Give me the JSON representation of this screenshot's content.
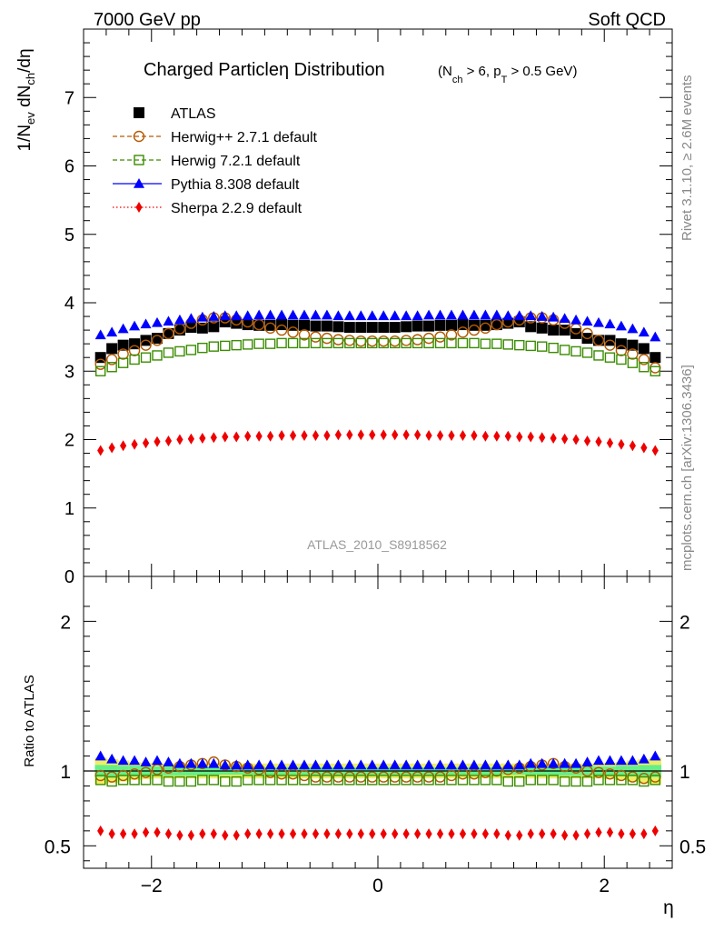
{
  "header": {
    "left": "7000 GeV pp",
    "right": "Soft QCD"
  },
  "side_labels": {
    "rivet": "Rivet 3.1.10, ≥ 2.6M events",
    "source": "mcplots.cern.ch [arXiv:1306.3436]"
  },
  "chart_data": [
    {
      "type": "scatter",
      "panel": "main",
      "title_main": "Charged Particleη Distribution",
      "title_sub": "(N_ch > 6, p_T > 0.5 GeV)",
      "watermark": "ATLAS_2010_S8918562",
      "ylabel": "1/N_ev dN_ch/dη",
      "xlabel": "η",
      "xlim": [
        -2.6,
        2.6
      ],
      "ylim": [
        0,
        8
      ],
      "yticks": [
        "0",
        "1",
        "2",
        "3",
        "4",
        "5",
        "6",
        "7"
      ],
      "xticks": [
        "−2",
        "0",
        "2"
      ],
      "legend_position": "top-left",
      "x": [
        -2.45,
        -2.35,
        -2.25,
        -2.15,
        -2.05,
        -1.95,
        -1.85,
        -1.75,
        -1.65,
        -1.55,
        -1.45,
        -1.35,
        -1.25,
        -1.15,
        -1.05,
        -0.95,
        -0.85,
        -0.75,
        -0.65,
        -0.55,
        -0.45,
        -0.35,
        -0.25,
        -0.15,
        -0.05,
        0.05,
        0.15,
        0.25,
        0.35,
        0.45,
        0.55,
        0.65,
        0.75,
        0.85,
        0.95,
        1.05,
        1.15,
        1.25,
        1.35,
        1.45,
        1.55,
        1.65,
        1.75,
        1.85,
        1.95,
        2.05,
        2.15,
        2.25,
        2.35,
        2.45
      ],
      "series": [
        {
          "name": "ATLAS",
          "marker": "square-filled",
          "color": "#000000",
          "line": "none",
          "values": [
            3.2,
            3.33,
            3.38,
            3.4,
            3.45,
            3.48,
            3.55,
            3.6,
            3.64,
            3.63,
            3.65,
            3.72,
            3.7,
            3.68,
            3.67,
            3.67,
            3.68,
            3.67,
            3.67,
            3.66,
            3.66,
            3.65,
            3.64,
            3.64,
            3.64,
            3.64,
            3.64,
            3.65,
            3.66,
            3.66,
            3.67,
            3.67,
            3.68,
            3.67,
            3.67,
            3.68,
            3.7,
            3.72,
            3.65,
            3.63,
            3.6,
            3.6,
            3.55,
            3.48,
            3.45,
            3.45,
            3.4,
            3.38,
            3.33,
            3.2
          ]
        },
        {
          "name": "Herwig++ 2.7.1 default",
          "marker": "circle-open",
          "color": "#b35a00",
          "line": "dashed",
          "values": [
            3.1,
            3.17,
            3.25,
            3.3,
            3.38,
            3.45,
            3.55,
            3.62,
            3.7,
            3.75,
            3.78,
            3.78,
            3.75,
            3.72,
            3.68,
            3.63,
            3.6,
            3.57,
            3.53,
            3.5,
            3.48,
            3.46,
            3.45,
            3.44,
            3.44,
            3.44,
            3.44,
            3.45,
            3.46,
            3.48,
            3.5,
            3.53,
            3.57,
            3.6,
            3.63,
            3.68,
            3.72,
            3.75,
            3.78,
            3.78,
            3.75,
            3.7,
            3.62,
            3.55,
            3.45,
            3.38,
            3.3,
            3.25,
            3.17,
            3.05
          ]
        },
        {
          "name": "Herwig 7.2.1 default",
          "marker": "square-open",
          "color": "#3a8c00",
          "line": "dashed",
          "values": [
            3.0,
            3.06,
            3.12,
            3.17,
            3.2,
            3.23,
            3.27,
            3.29,
            3.31,
            3.34,
            3.36,
            3.37,
            3.38,
            3.39,
            3.4,
            3.4,
            3.41,
            3.41,
            3.41,
            3.41,
            3.41,
            3.41,
            3.41,
            3.41,
            3.41,
            3.41,
            3.41,
            3.41,
            3.41,
            3.41,
            3.41,
            3.41,
            3.41,
            3.41,
            3.4,
            3.4,
            3.39,
            3.38,
            3.37,
            3.36,
            3.34,
            3.31,
            3.29,
            3.27,
            3.23,
            3.2,
            3.17,
            3.12,
            3.06,
            3.0
          ]
        },
        {
          "name": "Pythia 8.308 default",
          "marker": "triangle-filled",
          "color": "#0000ff",
          "line": "solid",
          "values": [
            3.53,
            3.57,
            3.62,
            3.66,
            3.69,
            3.71,
            3.73,
            3.75,
            3.77,
            3.79,
            3.8,
            3.81,
            3.81,
            3.81,
            3.82,
            3.82,
            3.82,
            3.82,
            3.82,
            3.82,
            3.82,
            3.81,
            3.81,
            3.81,
            3.81,
            3.81,
            3.81,
            3.81,
            3.81,
            3.82,
            3.82,
            3.82,
            3.82,
            3.82,
            3.82,
            3.82,
            3.81,
            3.81,
            3.81,
            3.8,
            3.79,
            3.77,
            3.75,
            3.73,
            3.71,
            3.69,
            3.66,
            3.62,
            3.57,
            3.5
          ]
        },
        {
          "name": "Sherpa 2.2.9 default",
          "marker": "diamond-filled",
          "color": "#ee0000",
          "line": "dotted",
          "values": [
            1.84,
            1.88,
            1.91,
            1.93,
            1.95,
            1.97,
            1.98,
            2.0,
            2.01,
            2.02,
            2.03,
            2.04,
            2.04,
            2.05,
            2.05,
            2.05,
            2.06,
            2.06,
            2.06,
            2.06,
            2.06,
            2.07,
            2.07,
            2.07,
            2.07,
            2.07,
            2.07,
            2.07,
            2.07,
            2.06,
            2.06,
            2.06,
            2.06,
            2.06,
            2.05,
            2.05,
            2.05,
            2.04,
            2.04,
            2.03,
            2.02,
            2.01,
            2.0,
            1.98,
            1.97,
            1.95,
            1.93,
            1.91,
            1.88,
            1.84
          ]
        }
      ]
    },
    {
      "type": "scatter",
      "panel": "ratio",
      "ylabel": "Ratio to ATLAS",
      "xlabel": "η",
      "xlim": [
        -2.6,
        2.6
      ],
      "ylim": [
        0.35,
        2.3
      ],
      "yticks": [
        "0.5",
        "1",
        "2"
      ],
      "band_colors": {
        "inner": "#66ee88",
        "outer": "#eeee66"
      },
      "band_inner_halfwidth": [
        0.04,
        0.04,
        0.035,
        0.035,
        0.03,
        0.03,
        0.03,
        0.03,
        0.03,
        0.03,
        0.025,
        0.025,
        0.025,
        0.025,
        0.025,
        0.025,
        0.025,
        0.025,
        0.025,
        0.025,
        0.025,
        0.025,
        0.025,
        0.025,
        0.025,
        0.025,
        0.025,
        0.025,
        0.025,
        0.025,
        0.025,
        0.025,
        0.025,
        0.025,
        0.025,
        0.025,
        0.025,
        0.025,
        0.025,
        0.025,
        0.03,
        0.03,
        0.03,
        0.03,
        0.03,
        0.03,
        0.035,
        0.035,
        0.04,
        0.04
      ],
      "band_outer_halfwidth": [
        0.09,
        0.08,
        0.07,
        0.06,
        0.055,
        0.05,
        0.05,
        0.05,
        0.05,
        0.05,
        0.05,
        0.05,
        0.05,
        0.05,
        0.05,
        0.05,
        0.05,
        0.05,
        0.05,
        0.05,
        0.05,
        0.05,
        0.05,
        0.05,
        0.05,
        0.05,
        0.05,
        0.05,
        0.05,
        0.05,
        0.05,
        0.05,
        0.05,
        0.05,
        0.05,
        0.05,
        0.05,
        0.05,
        0.05,
        0.05,
        0.05,
        0.05,
        0.05,
        0.05,
        0.05,
        0.055,
        0.06,
        0.07,
        0.08,
        0.09
      ],
      "series_ratio": [
        {
          "ref": "Herwig++ 2.7.1 default",
          "values": [
            0.97,
            0.96,
            0.97,
            0.98,
            0.99,
            1.01,
            1.02,
            1.03,
            1.04,
            1.05,
            1.06,
            1.04,
            1.03,
            1.02,
            1.01,
            0.99,
            0.98,
            0.98,
            0.97,
            0.96,
            0.96,
            0.96,
            0.96,
            0.96,
            0.96,
            0.96,
            0.96,
            0.96,
            0.96,
            0.96,
            0.96,
            0.97,
            0.98,
            0.98,
            0.99,
            1.0,
            1.01,
            1.02,
            1.03,
            1.04,
            1.05,
            1.03,
            1.02,
            1.0,
            0.99,
            0.98,
            0.97,
            0.96,
            0.95,
            0.96
          ]
        },
        {
          "ref": "Herwig 7.2.1 default",
          "values": [
            0.94,
            0.93,
            0.94,
            0.94,
            0.94,
            0.94,
            0.93,
            0.93,
            0.93,
            0.94,
            0.94,
            0.93,
            0.93,
            0.94,
            0.94,
            0.94,
            0.94,
            0.94,
            0.94,
            0.94,
            0.94,
            0.94,
            0.94,
            0.94,
            0.94,
            0.94,
            0.94,
            0.94,
            0.94,
            0.94,
            0.94,
            0.94,
            0.94,
            0.94,
            0.94,
            0.94,
            0.93,
            0.93,
            0.94,
            0.94,
            0.94,
            0.93,
            0.93,
            0.93,
            0.94,
            0.94,
            0.94,
            0.94,
            0.93,
            0.94
          ]
        },
        {
          "ref": "Pythia 8.308 default",
          "values": [
            1.1,
            1.08,
            1.07,
            1.07,
            1.06,
            1.07,
            1.06,
            1.05,
            1.05,
            1.05,
            1.05,
            1.04,
            1.04,
            1.04,
            1.04,
            1.04,
            1.04,
            1.04,
            1.04,
            1.04,
            1.04,
            1.04,
            1.04,
            1.04,
            1.04,
            1.04,
            1.04,
            1.04,
            1.04,
            1.04,
            1.04,
            1.04,
            1.04,
            1.04,
            1.04,
            1.04,
            1.04,
            1.04,
            1.05,
            1.05,
            1.05,
            1.05,
            1.05,
            1.06,
            1.07,
            1.07,
            1.07,
            1.07,
            1.08,
            1.1
          ]
        },
        {
          "ref": "Sherpa 2.2.9 default",
          "values": [
            0.6,
            0.58,
            0.58,
            0.58,
            0.59,
            0.59,
            0.58,
            0.57,
            0.57,
            0.58,
            0.58,
            0.57,
            0.57,
            0.58,
            0.58,
            0.58,
            0.58,
            0.58,
            0.58,
            0.58,
            0.58,
            0.58,
            0.58,
            0.58,
            0.58,
            0.58,
            0.58,
            0.58,
            0.58,
            0.58,
            0.58,
            0.58,
            0.58,
            0.58,
            0.58,
            0.58,
            0.57,
            0.57,
            0.58,
            0.58,
            0.58,
            0.57,
            0.57,
            0.58,
            0.59,
            0.59,
            0.58,
            0.58,
            0.58,
            0.6
          ]
        }
      ]
    }
  ]
}
